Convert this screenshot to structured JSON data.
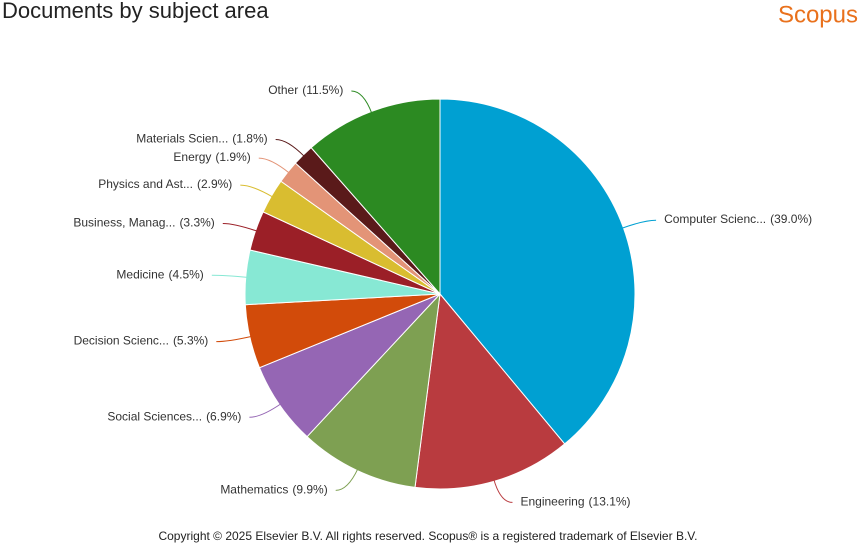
{
  "chart_data": {
    "type": "pie",
    "title": "Documents by subject area",
    "categories": [
      "Computer Scienc...",
      "Engineering",
      "Mathematics",
      "Social Sciences...",
      "Decision Scienc...",
      "Medicine",
      "Business, Manag...",
      "Physics and Ast...",
      "Energy",
      "Materials Scien...",
      "Other"
    ],
    "values": [
      39.0,
      13.1,
      9.9,
      6.9,
      5.3,
      4.5,
      3.3,
      2.9,
      1.9,
      1.8,
      11.5
    ],
    "value_labels": [
      "(39.0%)",
      "(13.1%)",
      "(9.9%)",
      "(6.9%)",
      "(5.3%)",
      "(4.5%)",
      "(3.3%)",
      "(2.9%)",
      "(1.9%)",
      "(1.8%)",
      "(11.5%)"
    ],
    "colors": [
      "#00a0d2",
      "#b93b3f",
      "#7ea052",
      "#9566b4",
      "#d24b0a",
      "#87e8d4",
      "#9b1f27",
      "#d9bd30",
      "#e39477",
      "#5a1a1a",
      "#2c8a22"
    ]
  },
  "logo": "Scopus",
  "copyright": "Copyright © 2025 Elsevier B.V. All rights reserved. Scopus® is a registered trademark of Elsevier B.V."
}
